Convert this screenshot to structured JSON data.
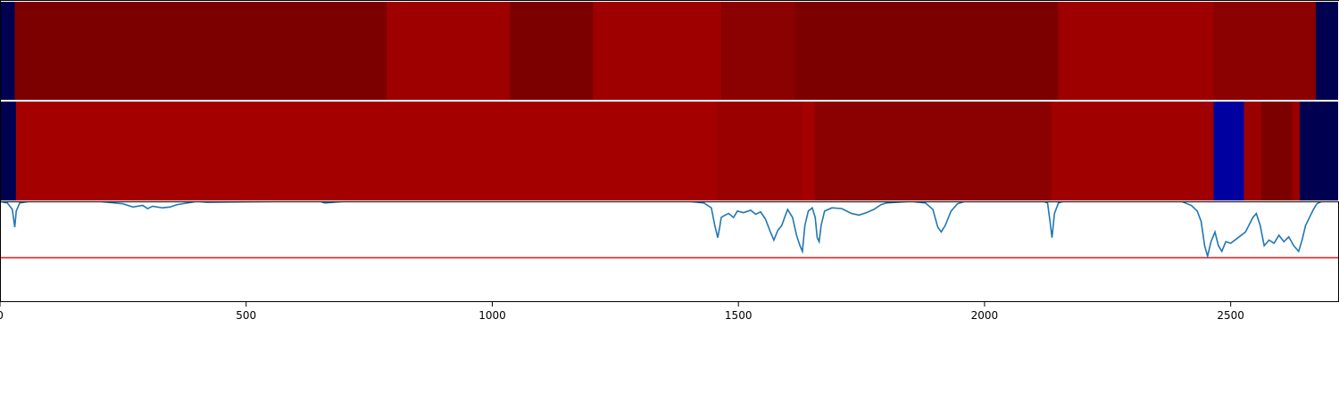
{
  "chart_data": {
    "type": "heatmap",
    "x_range": [
      0,
      2720
    ],
    "x_ticks": [
      {
        "value": 0,
        "label": "0"
      },
      {
        "value": 500,
        "label": "500"
      },
      {
        "value": 1000,
        "label": "1000"
      },
      {
        "value": 1500,
        "label": "1500"
      },
      {
        "value": 2000,
        "label": "2000"
      },
      {
        "value": 2500,
        "label": "2500"
      }
    ],
    "tracks": [
      {
        "segments": [
          {
            "start": 0,
            "end": 30,
            "color": "#000050"
          },
          {
            "start": 30,
            "end": 785,
            "color": "#7d0000"
          },
          {
            "start": 785,
            "end": 1035,
            "color": "#9e0000"
          },
          {
            "start": 1035,
            "end": 1205,
            "color": "#7d0000"
          },
          {
            "start": 1205,
            "end": 1465,
            "color": "#9e0000"
          },
          {
            "start": 1465,
            "end": 1615,
            "color": "#8b0000"
          },
          {
            "start": 1615,
            "end": 2150,
            "color": "#7d0000"
          },
          {
            "start": 2150,
            "end": 2465,
            "color": "#9e0000"
          },
          {
            "start": 2465,
            "end": 2673,
            "color": "#8b0000"
          },
          {
            "start": 2673,
            "end": 2720,
            "color": "#000050"
          }
        ]
      },
      {
        "segments": [
          {
            "start": 0,
            "end": 33,
            "color": "#000050"
          },
          {
            "start": 33,
            "end": 1455,
            "color": "#a50000"
          },
          {
            "start": 1455,
            "end": 1630,
            "color": "#9a0000"
          },
          {
            "start": 1630,
            "end": 1655,
            "color": "#a50000"
          },
          {
            "start": 1655,
            "end": 2135,
            "color": "#8b0000"
          },
          {
            "start": 2135,
            "end": 2465,
            "color": "#a00000"
          },
          {
            "start": 2465,
            "end": 2527,
            "color": "#0000a0"
          },
          {
            "start": 2527,
            "end": 2562,
            "color": "#9a0000"
          },
          {
            "start": 2562,
            "end": 2625,
            "color": "#7d0000"
          },
          {
            "start": 2625,
            "end": 2640,
            "color": "#9a0000"
          },
          {
            "start": 2640,
            "end": 2720,
            "color": "#000050"
          }
        ]
      }
    ],
    "line_panel": {
      "y_range": [
        -1.25,
        0
      ],
      "threshold": -0.7,
      "threshold_color": "#e41a1c",
      "series": [
        {
          "color": "#1f77b4",
          "points": [
            [
              0,
              0
            ],
            [
              15,
              -0.02
            ],
            [
              25,
              -0.1
            ],
            [
              30,
              -0.32
            ],
            [
              33,
              -0.12
            ],
            [
              40,
              -0.02
            ],
            [
              60,
              0
            ],
            [
              200,
              0
            ],
            [
              250,
              -0.03
            ],
            [
              270,
              -0.07
            ],
            [
              290,
              -0.05
            ],
            [
              300,
              -0.09
            ],
            [
              310,
              -0.06
            ],
            [
              330,
              -0.08
            ],
            [
              345,
              -0.07
            ],
            [
              360,
              -0.04
            ],
            [
              380,
              -0.02
            ],
            [
              400,
              0
            ],
            [
              420,
              -0.01
            ],
            [
              600,
              0
            ],
            [
              650,
              0
            ],
            [
              660,
              -0.02
            ],
            [
              700,
              0
            ],
            [
              1000,
              0
            ],
            [
              1100,
              0
            ],
            [
              1400,
              0
            ],
            [
              1430,
              -0.02
            ],
            [
              1445,
              -0.08
            ],
            [
              1452,
              -0.3
            ],
            [
              1458,
              -0.45
            ],
            [
              1462,
              -0.32
            ],
            [
              1465,
              -0.2
            ],
            [
              1470,
              -0.18
            ],
            [
              1480,
              -0.15
            ],
            [
              1490,
              -0.2
            ],
            [
              1498,
              -0.12
            ],
            [
              1510,
              -0.14
            ],
            [
              1525,
              -0.11
            ],
            [
              1535,
              -0.16
            ],
            [
              1545,
              -0.13
            ],
            [
              1555,
              -0.22
            ],
            [
              1565,
              -0.38
            ],
            [
              1572,
              -0.48
            ],
            [
              1580,
              -0.36
            ],
            [
              1588,
              -0.3
            ],
            [
              1595,
              -0.18
            ],
            [
              1600,
              -0.1
            ],
            [
              1610,
              -0.2
            ],
            [
              1618,
              -0.42
            ],
            [
              1625,
              -0.55
            ],
            [
              1630,
              -0.62
            ],
            [
              1635,
              -0.3
            ],
            [
              1642,
              -0.12
            ],
            [
              1650,
              -0.08
            ],
            [
              1656,
              -0.2
            ],
            [
              1660,
              -0.45
            ],
            [
              1664,
              -0.5
            ],
            [
              1668,
              -0.3
            ],
            [
              1675,
              -0.12
            ],
            [
              1690,
              -0.08
            ],
            [
              1710,
              -0.09
            ],
            [
              1730,
              -0.15
            ],
            [
              1745,
              -0.17
            ],
            [
              1760,
              -0.14
            ],
            [
              1775,
              -0.1
            ],
            [
              1790,
              -0.04
            ],
            [
              1800,
              -0.02
            ],
            [
              1850,
              0
            ],
            [
              1880,
              -0.02
            ],
            [
              1895,
              -0.1
            ],
            [
              1905,
              -0.32
            ],
            [
              1912,
              -0.38
            ],
            [
              1920,
              -0.3
            ],
            [
              1932,
              -0.12
            ],
            [
              1945,
              -0.03
            ],
            [
              1960,
              0
            ],
            [
              2120,
              0
            ],
            [
              2128,
              -0.02
            ],
            [
              2133,
              -0.25
            ],
            [
              2137,
              -0.45
            ],
            [
              2142,
              -0.15
            ],
            [
              2150,
              -0.02
            ],
            [
              2160,
              0
            ],
            [
              2400,
              0
            ],
            [
              2420,
              -0.05
            ],
            [
              2432,
              -0.12
            ],
            [
              2440,
              -0.25
            ],
            [
              2447,
              -0.55
            ],
            [
              2453,
              -0.68
            ],
            [
              2460,
              -0.5
            ],
            [
              2468,
              -0.38
            ],
            [
              2475,
              -0.55
            ],
            [
              2482,
              -0.62
            ],
            [
              2490,
              -0.5
            ],
            [
              2500,
              -0.52
            ],
            [
              2515,
              -0.45
            ],
            [
              2530,
              -0.38
            ],
            [
              2545,
              -0.2
            ],
            [
              2552,
              -0.15
            ],
            [
              2560,
              -0.3
            ],
            [
              2568,
              -0.55
            ],
            [
              2578,
              -0.48
            ],
            [
              2588,
              -0.52
            ],
            [
              2598,
              -0.42
            ],
            [
              2608,
              -0.5
            ],
            [
              2618,
              -0.44
            ],
            [
              2628,
              -0.55
            ],
            [
              2638,
              -0.62
            ],
            [
              2645,
              -0.48
            ],
            [
              2652,
              -0.3
            ],
            [
              2660,
              -0.2
            ],
            [
              2668,
              -0.1
            ],
            [
              2675,
              -0.03
            ],
            [
              2685,
              0
            ],
            [
              2720,
              0
            ]
          ]
        }
      ]
    }
  }
}
